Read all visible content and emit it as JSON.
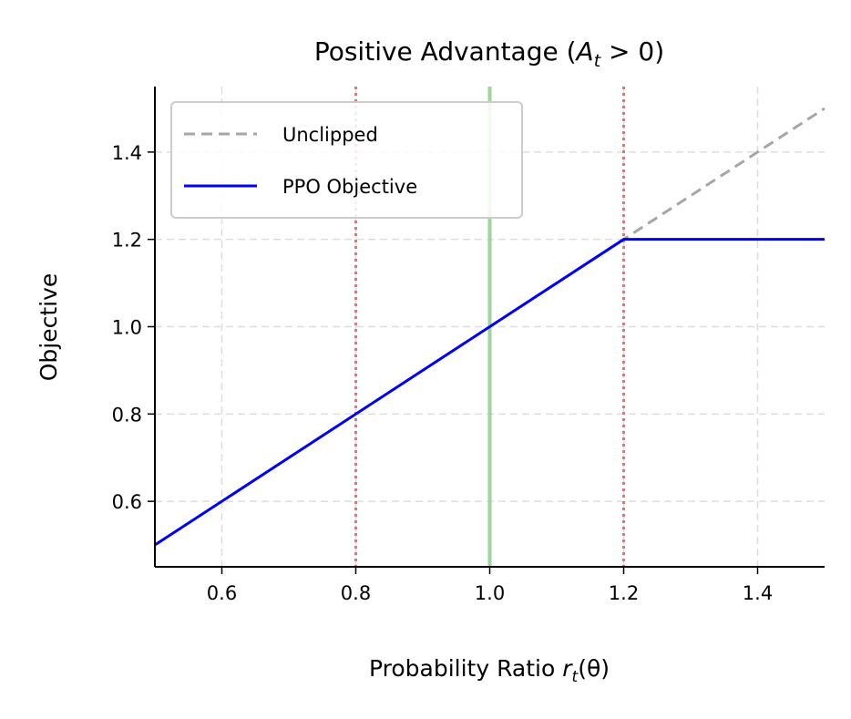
{
  "chart_data": {
    "type": "line",
    "title": {
      "prefix": "Positive Advantage (",
      "var": "A",
      "sub": "t",
      "suffix": " > 0)"
    },
    "xlabel": {
      "prefix": "Probability Ratio ",
      "var": "r",
      "sub": "t",
      "suffix": "(θ)"
    },
    "ylabel": "Objective",
    "xlim": [
      0.5,
      1.5
    ],
    "ylim": [
      0.45,
      1.55
    ],
    "xticks": [
      0.6,
      0.8,
      1.0,
      1.2,
      1.4
    ],
    "xtick_labels": [
      "0.6",
      "0.8",
      "1.0",
      "1.2",
      "1.4"
    ],
    "yticks": [
      0.6,
      0.8,
      1.0,
      1.2,
      1.4
    ],
    "ytick_labels": [
      "0.6",
      "0.8",
      "1.0",
      "1.2",
      "1.4"
    ],
    "grid": true,
    "legend_position": "top-left",
    "series": [
      {
        "name": "Unclipped",
        "color": "#a6a6a6",
        "style": "dashed",
        "x": [
          0.5,
          1.5
        ],
        "y": [
          0.5,
          1.5
        ]
      },
      {
        "name": "PPO Objective",
        "color": "#0000ff",
        "style": "solid",
        "x": [
          0.5,
          1.2,
          1.5
        ],
        "y": [
          0.5,
          1.2,
          1.2
        ]
      }
    ],
    "vlines": [
      {
        "x": 0.8,
        "color": "#f07070",
        "style": "dotted"
      },
      {
        "x": 1.2,
        "color": "#f07070",
        "style": "dotted"
      },
      {
        "x": 1.0,
        "color": "#9fd39f",
        "style": "solid"
      }
    ]
  }
}
